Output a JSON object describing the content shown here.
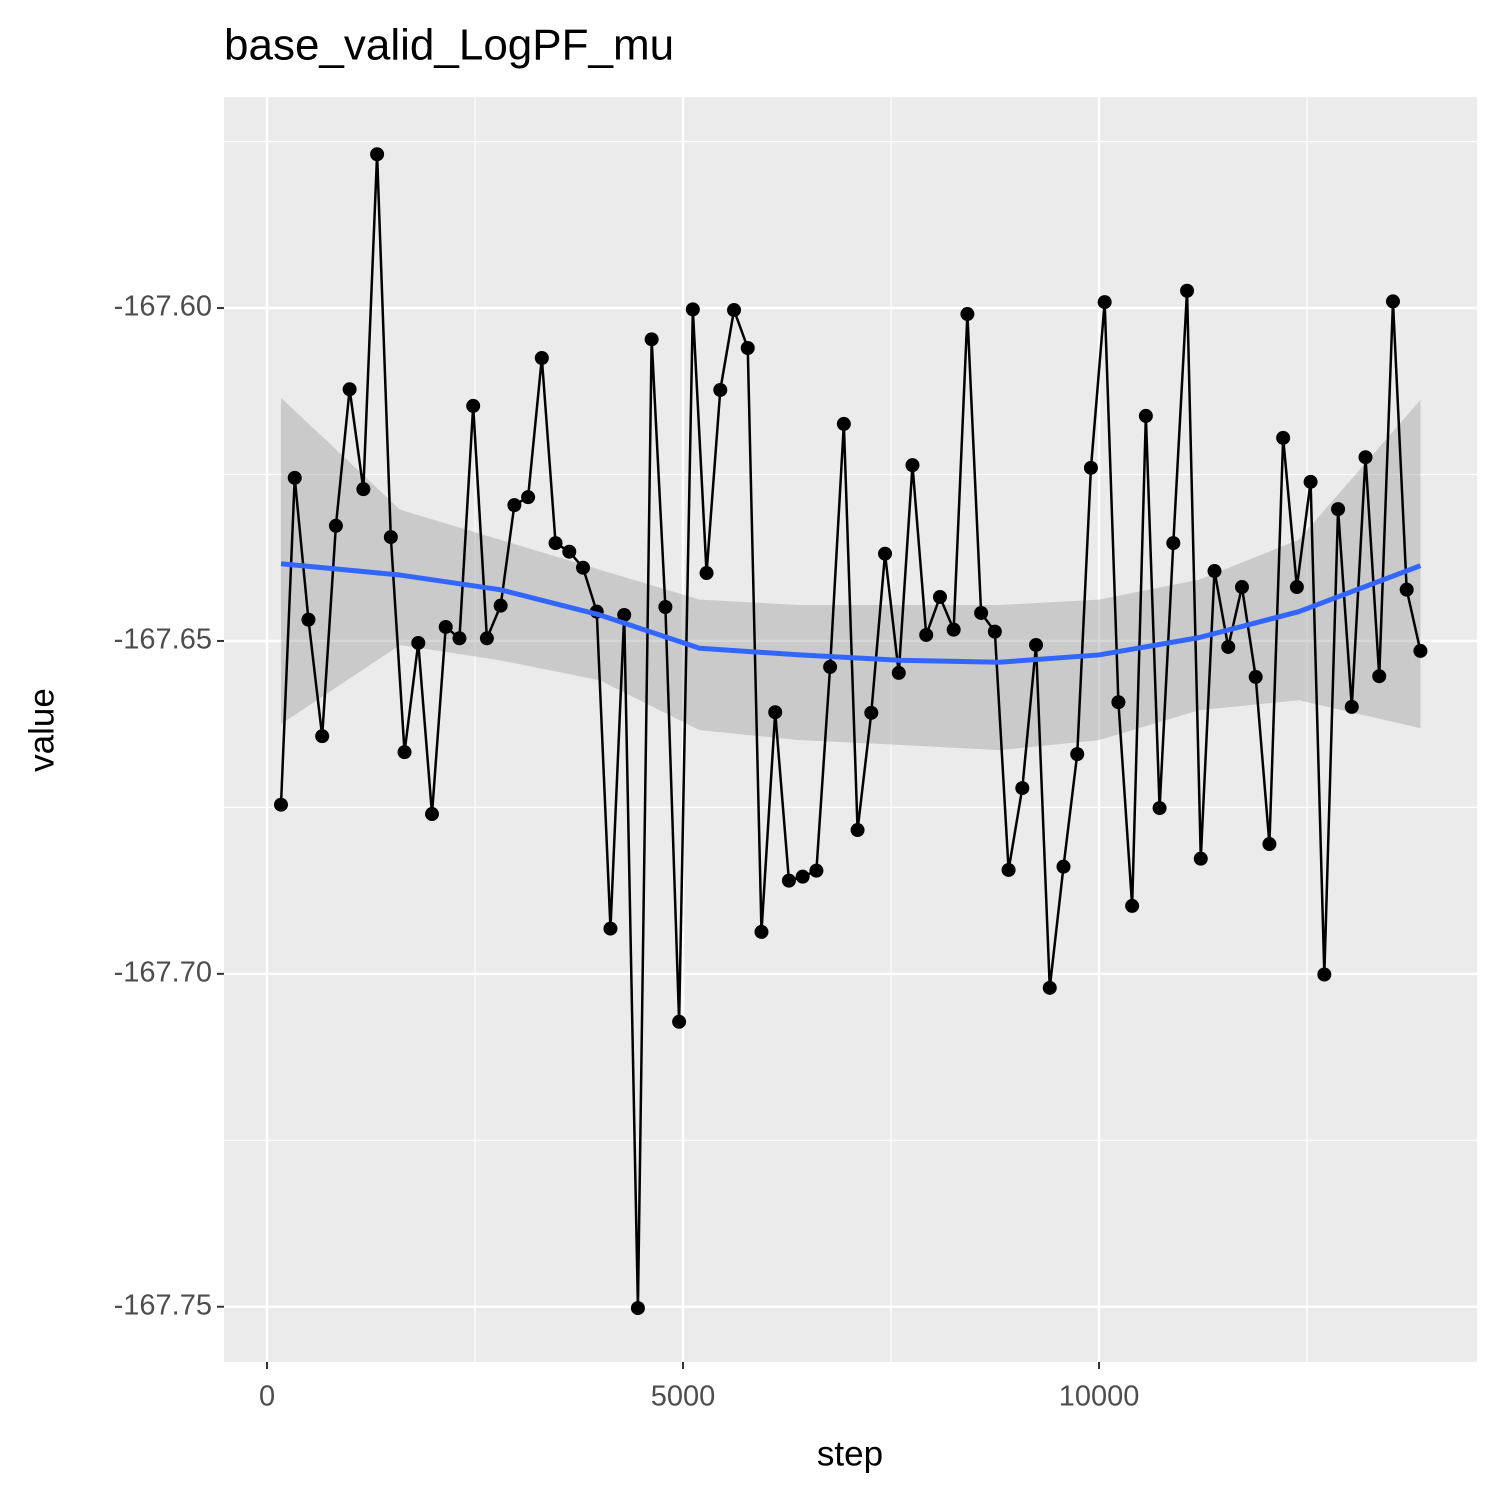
{
  "chart_data": {
    "type": "line",
    "title": "base_valid_LogPF_mu",
    "x_label": "step",
    "y_label": "value",
    "x": [
      168,
      333,
      498,
      663,
      828,
      993,
      1158,
      1323,
      1488,
      1653,
      1818,
      1983,
      2148,
      2313,
      2478,
      2643,
      2808,
      2973,
      3138,
      3303,
      3468,
      3633,
      3798,
      3963,
      4128,
      4293,
      4458,
      4623,
      4788,
      4953,
      5118,
      5283,
      5448,
      5613,
      5778,
      5943,
      6108,
      6273,
      6438,
      6603,
      6768,
      6933,
      7098,
      7263,
      7428,
      7593,
      7758,
      7923,
      8088,
      8253,
      8418,
      8583,
      8748,
      8913,
      9078,
      9243,
      9408,
      9573,
      9738,
      9903,
      10068,
      10233,
      10398,
      10563,
      10728,
      10893,
      11058,
      11223,
      11388,
      11553,
      11718,
      11883,
      12048,
      12213,
      12378,
      12543,
      12708,
      12873,
      13038,
      13203,
      13368,
      13533,
      13698,
      13863
    ],
    "series": [
      {
        "color": "#000000",
        "values": [
          -167.6746,
          -167.6255,
          -167.6468,
          -167.6643,
          -167.6327,
          -167.6122,
          -167.6272,
          -167.5769,
          -167.6344,
          -167.6667,
          -167.6503,
          -167.676,
          -167.6479,
          -167.6496,
          -167.6147,
          -167.6496,
          -167.6447,
          -167.6296,
          -167.6284,
          -167.6075,
          -167.6353,
          -167.6366,
          -167.639,
          -167.6456,
          -167.6932,
          -167.6461,
          -167.7502,
          -167.6047,
          -167.6449,
          -167.7072,
          -167.6002,
          -167.6398,
          -167.6123,
          -167.6003,
          -167.606,
          -167.6937,
          -167.6607,
          -167.686,
          -167.6854,
          -167.6845,
          -167.6539,
          -167.6174,
          -167.6784,
          -167.6608,
          -167.6369,
          -167.6548,
          -167.6236,
          -167.6491,
          -167.6434,
          -167.6483,
          -167.6009,
          -167.6458,
          -167.6486,
          -167.6844,
          -167.6721,
          -167.6506,
          -167.7021,
          -167.6839,
          -167.667,
          -167.624,
          -167.5991,
          -167.6592,
          -167.6898,
          -167.6162,
          -167.6751,
          -167.6353,
          -167.5974,
          -167.6827,
          -167.6395,
          -167.6509,
          -167.6419,
          -167.6554,
          -167.6805,
          -167.6195,
          -167.6419,
          -167.6261,
          -167.7001,
          -167.6302,
          -167.6599,
          -167.6224,
          -167.6553,
          -167.599,
          -167.6423,
          -167.6515
        ]
      }
    ],
    "smooth": {
      "color": "#3366ff",
      "band_color": "#999999",
      "x": [
        168,
        1600,
        2800,
        4000,
        5200,
        6400,
        7600,
        8800,
        10000,
        11200,
        12400,
        13863
      ],
      "values": [
        -167.6384,
        -167.6401,
        -167.6423,
        -167.6461,
        -167.6511,
        -167.6521,
        -167.6529,
        -167.6532,
        -167.6521,
        -167.6495,
        -167.6456,
        -167.6387
      ],
      "upper": [
        -167.6135,
        -167.6303,
        -167.6348,
        -167.6393,
        -167.6438,
        -167.6446,
        -167.6446,
        -167.6446,
        -167.6438,
        -167.6408,
        -167.6348,
        -167.6138
      ],
      "lower": [
        -167.6625,
        -167.6506,
        -167.6529,
        -167.6559,
        -167.6634,
        -167.6649,
        -167.6656,
        -167.6664,
        -167.6649,
        -167.6604,
        -167.6589,
        -167.6631
      ]
    },
    "xlim": [
      -517,
      14543
    ],
    "ylim": [
      -167.7583,
      -167.5683
    ],
    "xticks": [
      0,
      5000,
      10000
    ],
    "yticks": [
      {
        "value": -167.6,
        "label": "-167.60"
      },
      -167.65,
      {
        "value": -167.7,
        "label": "-167.70"
      },
      -167.75
    ],
    "x_minor_ticks": [
      2500,
      7500,
      12500
    ],
    "y_minor_ticks": [
      -167.575,
      -167.625,
      -167.675,
      -167.725
    ],
    "grid": true
  }
}
